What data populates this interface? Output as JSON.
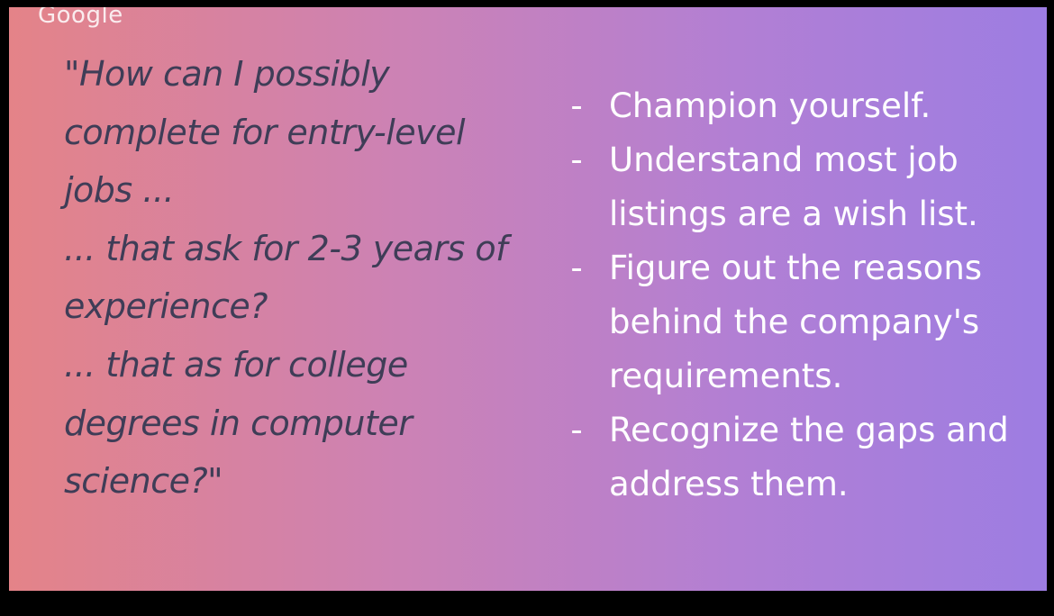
{
  "overlay": {
    "watermark": "Google"
  },
  "slide": {
    "quote_lines": [
      "\"How can I possibly",
      "complete for entry-level",
      "jobs ...",
      "... that ask for 2-3 years of",
      "experience?",
      "... that as for college",
      "degrees in computer",
      "science?\""
    ],
    "tips": [
      {
        "bullet": "-",
        "lines": [
          "Champion yourself."
        ]
      },
      {
        "bullet": "-",
        "lines": [
          "Understand most job",
          "listings are a wish list."
        ]
      },
      {
        "bullet": "-",
        "lines": [
          "Figure out the reasons",
          "behind the company's",
          "requirements."
        ]
      },
      {
        "bullet": "-",
        "lines": [
          "Recognize the gaps and",
          "address them."
        ]
      }
    ]
  },
  "colors": {
    "gradient_start": "#e48388",
    "gradient_end": "#9d7de2",
    "quote_text": "#3f3d57",
    "tip_text": "#ffffff",
    "frame": "#000000"
  }
}
